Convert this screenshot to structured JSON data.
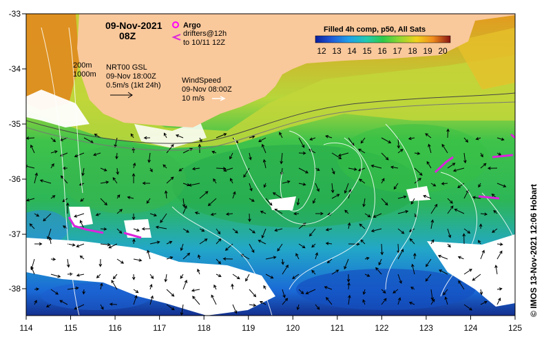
{
  "map": {
    "date": "09-Nov-2021",
    "time": "08Z",
    "legend": {
      "argo_label": "Argo",
      "drifters_line1": "drifters@12h",
      "drifters_line2": "to 10/11 12Z"
    },
    "isobaths": [
      "200m",
      "1000m"
    ],
    "currents": {
      "line1": "NRT00 GSL",
      "line2": "09-Nov 18:00Z",
      "line3": "0.5m/s (1kt 24h)"
    },
    "wind": {
      "line1": "WindSpeed",
      "line2": "09-Nov 08:00Z",
      "line3": "10 m/s"
    },
    "colorbar": {
      "title": "Filled 4h comp, p50, All Sats",
      "ticks": [
        "12",
        "13",
        "14",
        "15",
        "16",
        "17",
        "18",
        "19",
        "20"
      ],
      "colors": [
        "#0a1f9c",
        "#1e5ad8",
        "#1fa0e8",
        "#22c9b0",
        "#2ec94a",
        "#8ed632",
        "#f0d21c",
        "#f08c1e",
        "#d8401a",
        "#8a1414"
      ]
    },
    "x_ticks": [
      "114",
      "115",
      "116",
      "117",
      "118",
      "119",
      "120",
      "121",
      "122",
      "123",
      "124",
      "125"
    ],
    "y_ticks": [
      "-33",
      "-34",
      "-35",
      "-36",
      "-37",
      "-38"
    ],
    "credit": "© IMOS 13-Nov-2021 12:06 Hobart",
    "colors": {
      "land": "#f9c89b",
      "cloud": "#ffffff",
      "argo": "#ff00ff",
      "drifter": "#dd22dd"
    }
  }
}
